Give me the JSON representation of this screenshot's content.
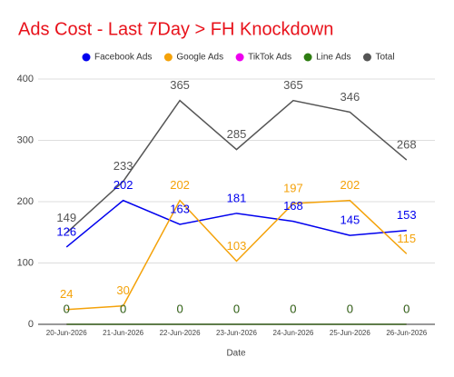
{
  "chart_data": {
    "type": "line",
    "title": "Ads Cost - Last 7Day > FH Knockdown",
    "x_label": "Date",
    "categories": [
      "20-Jun-2026",
      "21-Jun-2026",
      "22-Jun-2026",
      "23-Jun-2026",
      "24-Jun-2026",
      "25-Jun-2026",
      "26-Jun-2026"
    ],
    "series": [
      {
        "name": "Facebook Ads",
        "color": "#0000ee",
        "values": [
          126,
          202,
          163,
          181,
          168,
          145,
          153
        ]
      },
      {
        "name": "Google Ads",
        "color": "#f4a20a",
        "values": [
          24,
          30,
          202,
          103,
          197,
          202,
          115
        ]
      },
      {
        "name": "TikTok Ads",
        "color": "#ee00ee",
        "values": [
          0,
          0,
          0,
          0,
          0,
          0,
          0
        ]
      },
      {
        "name": "Line Ads",
        "color": "#2e7d12",
        "values": [
          0,
          0,
          0,
          0,
          0,
          0,
          0
        ]
      },
      {
        "name": "Total",
        "color": "#555555",
        "values": [
          149,
          233,
          365,
          285,
          365,
          346,
          268
        ]
      }
    ],
    "ylim": [
      0,
      400
    ],
    "yticks": [
      0,
      100,
      200,
      300,
      400
    ],
    "grid": true
  }
}
